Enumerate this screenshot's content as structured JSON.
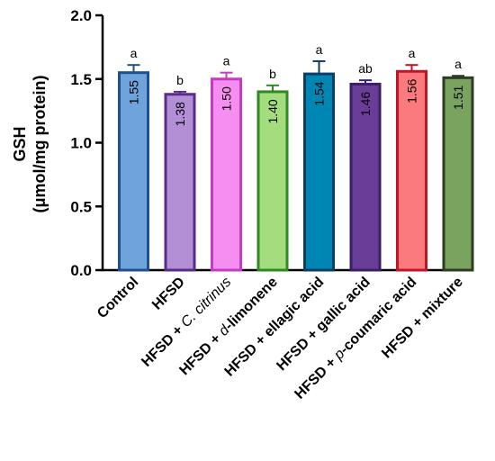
{
  "chart_data": {
    "type": "bar",
    "ylabel_line1": "GSH",
    "ylabel_line2": "(μmol/mg protein)",
    "ylim": [
      0,
      2.0
    ],
    "yticks": [
      "0.0",
      "0.5",
      "1.0",
      "1.5",
      "2.0"
    ],
    "grid": false,
    "categories": [
      {
        "prefix": "Control",
        "italic": "",
        "suffix": ""
      },
      {
        "prefix": "HFSD",
        "italic": "",
        "suffix": ""
      },
      {
        "prefix": "HFSD + ",
        "italic": "C. citrinus",
        "suffix": ""
      },
      {
        "prefix": "HFSD + ",
        "italic": "d",
        "suffix": "-limonene"
      },
      {
        "prefix": "HFSD + ellagic acid",
        "italic": "",
        "suffix": ""
      },
      {
        "prefix": "HFSD + gallic acid",
        "italic": "",
        "suffix": ""
      },
      {
        "prefix": "HFSD + ",
        "italic": "p",
        "suffix": "-coumaric acid"
      },
      {
        "prefix": "HFSD + mixture",
        "italic": "",
        "suffix": ""
      }
    ],
    "values": [
      1.55,
      1.38,
      1.5,
      1.4,
      1.54,
      1.46,
      1.56,
      1.51
    ],
    "value_labels": [
      "1.55",
      "1.38",
      "1.50",
      "1.40",
      "1.54",
      "1.46",
      "1.56",
      "1.51"
    ],
    "errors": [
      0.06,
      0.02,
      0.05,
      0.05,
      0.1,
      0.03,
      0.05,
      0.015
    ],
    "significance": [
      "a",
      "b",
      "a",
      "b",
      "a",
      "ab",
      "a",
      "a"
    ],
    "fill_colors": [
      "#6fa3dc",
      "#b38fd6",
      "#f58ef0",
      "#a4dd7d",
      "#0086b3",
      "#6a3d99",
      "#fb7a7e",
      "#7aa35f"
    ],
    "edge_colors": [
      "#1e4f8f",
      "#5a2a8c",
      "#c43cc0",
      "#2e8b22",
      "#0b3d66",
      "#3b1f66",
      "#c01427",
      "#2c3d24"
    ],
    "value_label_colors": [
      "#000000",
      "#000000",
      "#000000",
      "#000000",
      "#000000",
      "#ffffff",
      "#000000",
      "#000000"
    ]
  }
}
